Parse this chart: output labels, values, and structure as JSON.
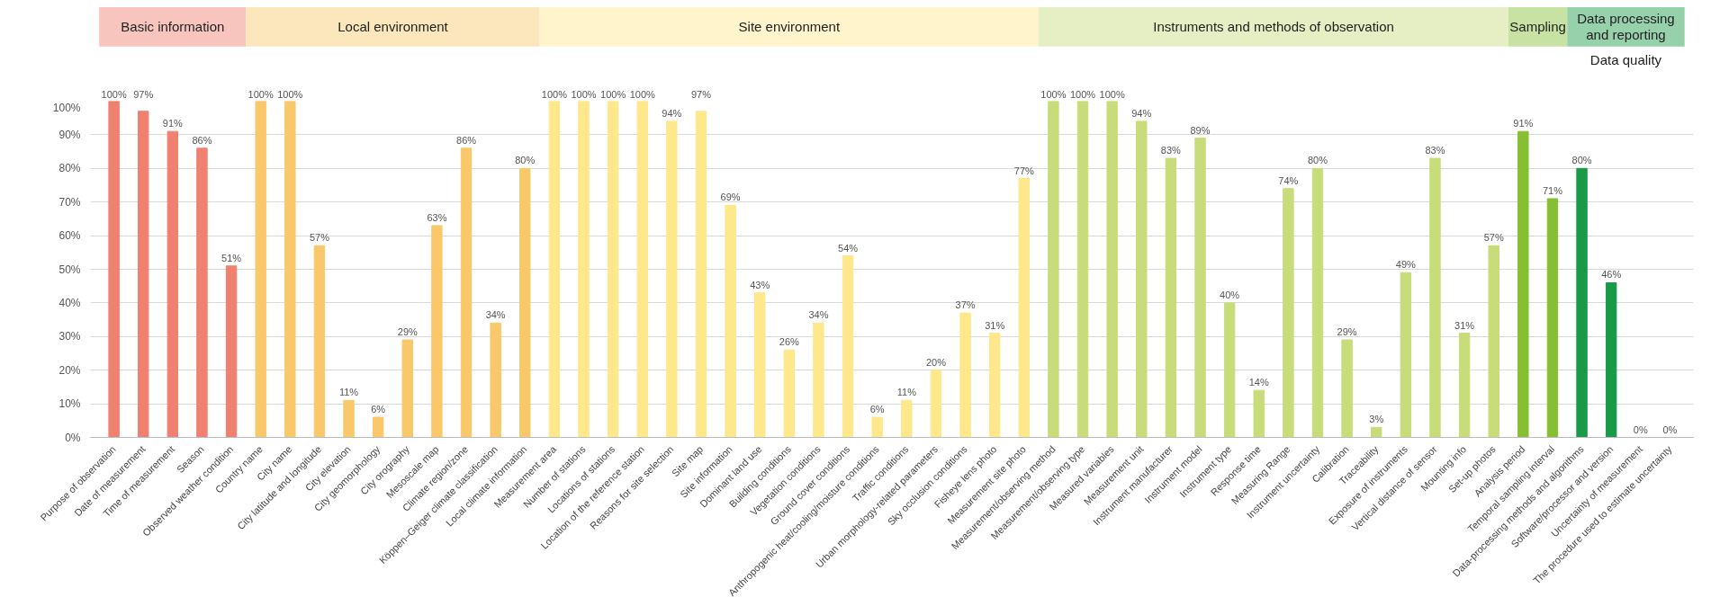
{
  "chart_data": {
    "type": "bar",
    "categories": [
      "Purpose of observation",
      "Date of measurement",
      "Time of measurement",
      "Season",
      "Observed weather condition",
      "Country name",
      "City name",
      "City latitude and longitude",
      "City elevation",
      "City geomorphology",
      "City orography",
      "Mesoscale map",
      "Climate region/zone",
      "Köppen–Geiger climate classification",
      "Local climate information",
      "Measurement area",
      "Number of stations",
      "Locations of stations",
      "Location of the reference station",
      "Reasons for site selection",
      "Site map",
      "Site information",
      "Dominant land use",
      "Building conditions",
      "Vegetation conditions",
      "Ground cover conditions",
      "Anthropogenic heat/cooling/moisture conditions",
      "Traffic conditions",
      "Urban morphology-related parameters",
      "Sky occlusion conditions",
      "Fisheye lens photo",
      "Measurement site photo",
      "Measurement/observing method",
      "Measurement/observing type",
      "Measured variables",
      "Measurement unit",
      "Instrument manufacturer",
      "Instrument model",
      "Instrument type",
      "Response time",
      "Measuring Range",
      "Instrument uncertainty",
      "Calibration",
      "Traceability",
      "Exposure of instruments",
      "Vertical distance of sensor",
      "Mounting info",
      "Set-up photos",
      "Analysis period",
      "Temporal sampling interval",
      "Data-processing methods and algorithms",
      "Software/processor and version",
      "Uncertainty of measurement",
      "The procedure used to estimate uncertainty"
    ],
    "values": [
      100,
      97,
      91,
      86,
      51,
      100,
      100,
      57,
      11,
      6,
      29,
      63,
      86,
      34,
      80,
      100,
      100,
      100,
      100,
      94,
      97,
      69,
      43,
      26,
      34,
      54,
      6,
      11,
      20,
      37,
      31,
      77,
      100,
      100,
      100,
      94,
      83,
      89,
      40,
      14,
      74,
      80,
      29,
      3,
      49,
      83,
      31,
      57,
      91,
      71,
      80,
      46,
      0,
      0
    ],
    "value_labels": [
      "100%",
      "97%",
      "91%",
      "86%",
      "51%",
      "100%",
      "100%",
      "57%",
      "11%",
      "6%",
      "29%",
      "63%",
      "86%",
      "34%",
      "80%",
      "100%",
      "100%",
      "100%",
      "100%",
      "94%",
      "97%",
      "69%",
      "43%",
      "26%",
      "34%",
      "54%",
      "6%",
      "11%",
      "20%",
      "37%",
      "31%",
      "77%",
      "100%",
      "100%",
      "100%",
      "94%",
      "83%",
      "89%",
      "40%",
      "14%",
      "74%",
      "80%",
      "29%",
      "3%",
      "49%",
      "83%",
      "31%",
      "57%",
      "91%",
      "71%",
      "80%",
      "46%",
      "0%",
      "0%"
    ],
    "colors": [
      "#f08070",
      "#f08070",
      "#f08070",
      "#f08070",
      "#f08070",
      "#f9c86a",
      "#f9c86a",
      "#f9c86a",
      "#f9c86a",
      "#f9c86a",
      "#f9c86a",
      "#f9c86a",
      "#f9c86a",
      "#f9c86a",
      "#f9c86a",
      "#ffe88c",
      "#ffe88c",
      "#ffe88c",
      "#ffe88c",
      "#ffe88c",
      "#ffe88c",
      "#ffe88c",
      "#ffe88c",
      "#ffe88c",
      "#ffe88c",
      "#ffe88c",
      "#ffe88c",
      "#ffe88c",
      "#ffe88c",
      "#ffe88c",
      "#ffe88c",
      "#ffe88c",
      "#c9dc7a",
      "#c9dc7a",
      "#c9dc7a",
      "#c9dc7a",
      "#c9dc7a",
      "#c9dc7a",
      "#c9dc7a",
      "#c9dc7a",
      "#c9dc7a",
      "#c9dc7a",
      "#c9dc7a",
      "#c9dc7a",
      "#c9dc7a",
      "#c9dc7a",
      "#c9dc7a",
      "#c9dc7a",
      "#86bf33",
      "#86bf33",
      "#1a9a48",
      "#1a9a48",
      "#1a9a48",
      "#1a9a48"
    ],
    "ylim": [
      0,
      100
    ],
    "yticks": [
      {
        "value": 0,
        "label": "0%"
      },
      {
        "value": 10,
        "label": "10%"
      },
      {
        "value": 20,
        "label": "20%"
      },
      {
        "value": 30,
        "label": "30%"
      },
      {
        "value": 40,
        "label": "40%"
      },
      {
        "value": 50,
        "label": "50%"
      },
      {
        "value": 60,
        "label": "60%"
      },
      {
        "value": 70,
        "label": "70%"
      },
      {
        "value": 80,
        "label": "80%"
      },
      {
        "value": 90,
        "label": "90%"
      },
      {
        "value": 100,
        "label": "100%"
      }
    ],
    "grid": "y",
    "annotations": [
      "Basic information",
      "Local environment",
      "Site environment",
      "Instruments and methods of observation",
      "Sampling",
      "Data processing and reporting",
      "Data quality"
    ]
  }
}
